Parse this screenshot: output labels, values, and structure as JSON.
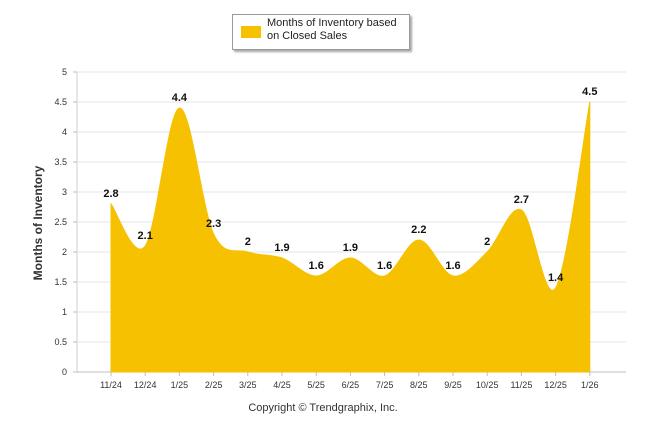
{
  "chart_data": {
    "type": "area",
    "categories": [
      "11/24",
      "12/24",
      "1/25",
      "2/25",
      "3/25",
      "4/25",
      "5/25",
      "6/25",
      "7/25",
      "8/25",
      "9/25",
      "10/25",
      "11/25",
      "12/25",
      "1/26"
    ],
    "series": [
      {
        "name": "Months of Inventory based on Closed Sales",
        "values": [
          2.8,
          2.1,
          4.4,
          2.3,
          2,
          1.9,
          1.6,
          1.9,
          1.6,
          2.2,
          1.6,
          2,
          2.7,
          1.4,
          4.5
        ]
      }
    ],
    "ylabel": "Months of Inventory",
    "ylim": [
      0,
      5
    ],
    "yticks": [
      0,
      0.5,
      1,
      1.5,
      2,
      2.5,
      3,
      3.5,
      4,
      4.5,
      5
    ],
    "grid": true,
    "legend_position": "top-center",
    "color": "#f5c100"
  },
  "footer": {
    "copyright": "Copyright © Trendgraphix, Inc."
  }
}
